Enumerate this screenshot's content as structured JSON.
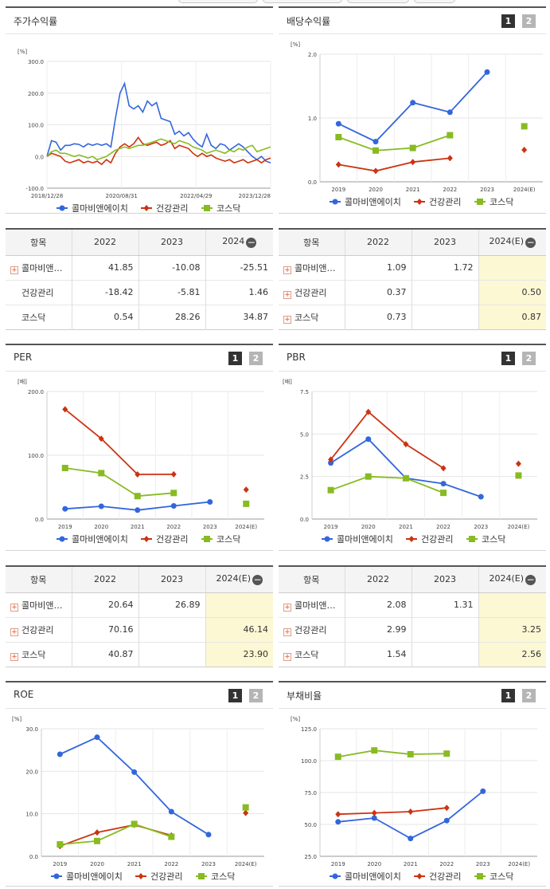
{
  "panels": {
    "stock_return": {
      "title": "주가수익률"
    },
    "dividend": {
      "title": "배당수익률",
      "page_1": "1",
      "page_2": "2"
    },
    "per": {
      "title": "PER",
      "page_1": "1",
      "page_2": "2"
    },
    "pbr": {
      "title": "PBR",
      "page_1": "1",
      "page_2": "2"
    },
    "roe": {
      "title": "ROE",
      "page_1": "1",
      "page_2": "2"
    },
    "debt": {
      "title": "부채비율",
      "page_1": "1",
      "page_2": "2"
    }
  },
  "colors": {
    "series1": "#3366dd",
    "series2": "#cc3311",
    "series3": "#88bb22",
    "highlight": "#fcf8d4",
    "header_bar": "#555555"
  },
  "icons": {
    "expand": "plus-box-icon",
    "collapse": "minus-circle-icon"
  },
  "chart_data": [
    {
      "id": "stock_return",
      "type": "line",
      "unit": "[%]",
      "ylim": [
        -100,
        300
      ],
      "yticks": [
        "300.0",
        "200.0",
        "100.0",
        "0.0",
        "-100.0"
      ],
      "x_labels": [
        "2018/12/28",
        "2020/08/31",
        "2022/04/29",
        "2023/12/28"
      ],
      "legend": [
        "콜마비앤에이치",
        "건강관리",
        "코스닥"
      ],
      "series": [
        {
          "name": "콜마비앤에이치",
          "values": [
            0,
            50,
            45,
            20,
            35,
            35,
            40,
            38,
            30,
            40,
            35,
            40,
            35,
            40,
            30,
            120,
            200,
            230,
            160,
            150,
            160,
            140,
            175,
            160,
            170,
            120,
            115,
            110,
            70,
            80,
            65,
            75,
            55,
            40,
            30,
            70,
            35,
            25,
            40,
            35,
            20,
            30,
            40,
            30,
            15,
            0,
            -10,
            0,
            -15,
            -20
          ]
        },
        {
          "name": "건강관리",
          "values": [
            0,
            10,
            5,
            0,
            -15,
            -20,
            -15,
            -10,
            -20,
            -15,
            -20,
            -15,
            -25,
            -10,
            -20,
            10,
            30,
            40,
            30,
            40,
            60,
            40,
            35,
            40,
            45,
            35,
            40,
            50,
            25,
            35,
            30,
            25,
            10,
            0,
            10,
            0,
            5,
            -5,
            -10,
            -15,
            -10,
            -20,
            -15,
            -10,
            -20,
            -15,
            -10,
            -20,
            -10,
            -5
          ]
        },
        {
          "name": "코스닥",
          "values": [
            0,
            15,
            20,
            10,
            10,
            5,
            0,
            5,
            0,
            -5,
            0,
            -10,
            -5,
            0,
            10,
            20,
            25,
            30,
            25,
            30,
            35,
            35,
            40,
            45,
            50,
            55,
            50,
            45,
            40,
            50,
            45,
            40,
            30,
            25,
            20,
            10,
            15,
            20,
            15,
            10,
            20,
            15,
            25,
            20,
            30,
            35,
            15,
            20,
            25,
            30
          ]
        }
      ]
    },
    {
      "id": "dividend",
      "type": "line",
      "unit": "[%]",
      "ylim": [
        0,
        2
      ],
      "yticks": [
        "2.0",
        "1.0",
        "0.0"
      ],
      "categories": [
        "2019",
        "2020",
        "2021",
        "2022",
        "2023",
        "2024(E)"
      ],
      "legend": [
        "콜마비앤에이치",
        "건강관리",
        "코스닥"
      ],
      "series": [
        {
          "name": "콜마비앤에이치",
          "values": [
            0.91,
            0.63,
            1.24,
            1.09,
            1.72,
            null
          ]
        },
        {
          "name": "건강관리",
          "values": [
            0.27,
            0.17,
            0.31,
            0.37,
            null,
            0.5
          ]
        },
        {
          "name": "코스닥",
          "values": [
            0.7,
            0.49,
            0.53,
            0.73,
            null,
            0.87
          ]
        }
      ]
    },
    {
      "id": "per",
      "type": "line",
      "unit": "[배]",
      "ylim": [
        0,
        200
      ],
      "yticks": [
        "200.0",
        "100.0",
        "0.0"
      ],
      "categories": [
        "2019",
        "2020",
        "2021",
        "2022",
        "2023",
        "2024(E)"
      ],
      "legend": [
        "콜마비앤에이치",
        "건강관리",
        "코스닥"
      ],
      "series": [
        {
          "name": "콜마비앤에이치",
          "values": [
            16,
            20,
            14,
            20.64,
            26.89,
            null
          ]
        },
        {
          "name": "건강관리",
          "values": [
            172,
            126,
            70,
            70.16,
            null,
            46.14
          ]
        },
        {
          "name": "코스닥",
          "values": [
            80,
            72,
            36,
            40.87,
            null,
            23.9
          ]
        }
      ]
    },
    {
      "id": "pbr",
      "type": "line",
      "unit": "[배]",
      "ylim": [
        0,
        7.5
      ],
      "yticks": [
        "7.5",
        "5.0",
        "2.5",
        "0.0"
      ],
      "categories": [
        "2019",
        "2020",
        "2021",
        "2022",
        "2023",
        "2024(E)"
      ],
      "legend": [
        "콜마비앤에이치",
        "건강관리",
        "코스닥"
      ],
      "series": [
        {
          "name": "콜마비앤에이치",
          "values": [
            3.3,
            4.7,
            2.4,
            2.08,
            1.31,
            null
          ]
        },
        {
          "name": "건강관리",
          "values": [
            3.5,
            6.3,
            4.4,
            2.99,
            null,
            3.25
          ]
        },
        {
          "name": "코스닥",
          "values": [
            1.7,
            2.5,
            2.4,
            1.54,
            null,
            2.56
          ]
        }
      ]
    },
    {
      "id": "roe",
      "type": "line",
      "unit": "[%]",
      "ylim": [
        0,
        30
      ],
      "yticks": [
        "30.0",
        "20.0",
        "10.0",
        "0.0"
      ],
      "categories": [
        "2019",
        "2020",
        "2021",
        "2022",
        "2023",
        "2024(E)"
      ],
      "legend": [
        "콜마비앤에이치",
        "건강관리",
        "코스닥"
      ],
      "series": [
        {
          "name": "콜마비앤에이치",
          "values": [
            24,
            28,
            19.8,
            10.5,
            5.1,
            null
          ]
        },
        {
          "name": "건강관리",
          "values": [
            2.4,
            5.6,
            7.4,
            4.9,
            null,
            10.2
          ]
        },
        {
          "name": "코스닥",
          "values": [
            2.8,
            3.6,
            7.6,
            4.6,
            null,
            11.5
          ]
        }
      ]
    },
    {
      "id": "debt",
      "type": "line",
      "unit": "[%]",
      "ylim": [
        25,
        125
      ],
      "yticks": [
        "125.0",
        "100.0",
        "75.0",
        "50.0",
        "25.0"
      ],
      "categories": [
        "2019",
        "2020",
        "2021",
        "2022",
        "2023",
        "2024(E)"
      ],
      "legend": [
        "콜마비앤에이치",
        "건강관리",
        "코스닥"
      ],
      "series": [
        {
          "name": "콜마비앤에이치",
          "values": [
            52,
            55,
            39,
            53,
            76,
            null
          ]
        },
        {
          "name": "건강관리",
          "values": [
            58,
            59,
            60,
            63,
            null,
            null
          ]
        },
        {
          "name": "코스닥",
          "values": [
            103,
            108,
            105,
            105.5,
            null,
            null
          ]
        }
      ]
    }
  ],
  "tables": {
    "stock_return": {
      "headers": [
        "항목",
        "2022",
        "2023",
        "2024"
      ],
      "rows": [
        {
          "label": "콜마비앤…",
          "expand": true,
          "values": [
            "41.85",
            "-10.08",
            "-25.51"
          ]
        },
        {
          "label": "건강관리",
          "expand": false,
          "values": [
            "-18.42",
            "-5.81",
            "1.46"
          ]
        },
        {
          "label": "코스닥",
          "expand": false,
          "values": [
            "0.54",
            "28.26",
            "34.87"
          ]
        }
      ]
    },
    "dividend": {
      "headers": [
        "항목",
        "2022",
        "2023",
        "2024(E)"
      ],
      "rows": [
        {
          "label": "콜마비앤…",
          "expand": true,
          "values": [
            "1.09",
            "1.72",
            ""
          ]
        },
        {
          "label": "건강관리",
          "expand": true,
          "values": [
            "0.37",
            "",
            "0.50"
          ]
        },
        {
          "label": "코스닥",
          "expand": true,
          "values": [
            "0.73",
            "",
            "0.87"
          ]
        }
      ]
    },
    "per": {
      "headers": [
        "항목",
        "2022",
        "2023",
        "2024(E)"
      ],
      "rows": [
        {
          "label": "콜마비앤…",
          "expand": true,
          "values": [
            "20.64",
            "26.89",
            ""
          ]
        },
        {
          "label": "건강관리",
          "expand": true,
          "values": [
            "70.16",
            "",
            "46.14"
          ]
        },
        {
          "label": "코스닥",
          "expand": true,
          "values": [
            "40.87",
            "",
            "23.90"
          ]
        }
      ]
    },
    "pbr": {
      "headers": [
        "항목",
        "2022",
        "2023",
        "2024(E)"
      ],
      "rows": [
        {
          "label": "콜마비앤…",
          "expand": true,
          "values": [
            "2.08",
            "1.31",
            ""
          ]
        },
        {
          "label": "건강관리",
          "expand": true,
          "values": [
            "2.99",
            "",
            "3.25"
          ]
        },
        {
          "label": "코스닥",
          "expand": true,
          "values": [
            "1.54",
            "",
            "2.56"
          ]
        }
      ]
    }
  }
}
